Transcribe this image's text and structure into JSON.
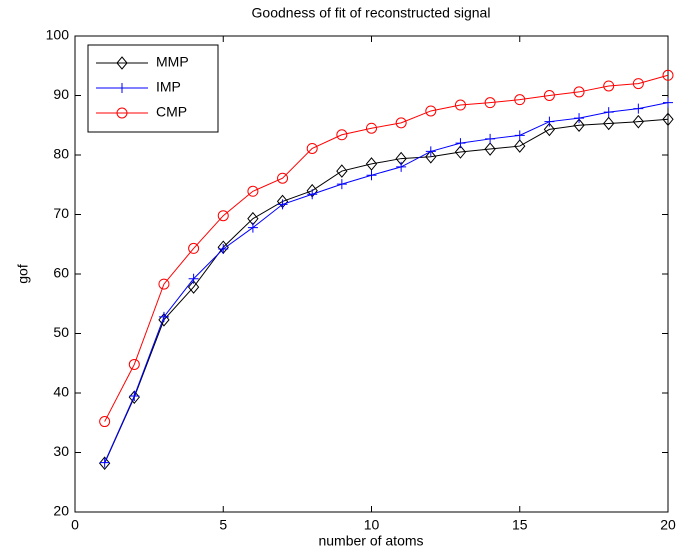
{
  "chart_data": {
    "type": "line",
    "title": "Goodness of fit of reconstructed signal",
    "xlabel": "number of atoms",
    "ylabel": "gof",
    "x": [
      1,
      2,
      3,
      4,
      5,
      6,
      7,
      8,
      9,
      10,
      11,
      12,
      13,
      14,
      15,
      16,
      17,
      18,
      19,
      20
    ],
    "series": [
      {
        "name": "MMP",
        "color": "#000000",
        "marker": "diamond",
        "values": [
          28.2,
          39.3,
          52.3,
          57.8,
          64.5,
          69.3,
          72.2,
          74.0,
          77.3,
          78.5,
          79.4,
          79.7,
          80.5,
          81.0,
          81.5,
          84.3,
          85.0,
          85.3,
          85.6,
          86.0
        ]
      },
      {
        "name": "IMP",
        "color": "#0000ff",
        "marker": "plus",
        "values": [
          28.3,
          39.5,
          52.8,
          59.2,
          64.2,
          67.8,
          71.7,
          73.4,
          75.1,
          76.6,
          78.0,
          80.6,
          82.0,
          82.7,
          83.3,
          85.6,
          86.2,
          87.2,
          87.8,
          88.8
        ]
      },
      {
        "name": "CMP",
        "color": "#ff0000",
        "marker": "circle",
        "values": [
          35.2,
          44.8,
          58.3,
          64.3,
          69.8,
          73.9,
          76.1,
          81.1,
          83.4,
          84.5,
          85.4,
          87.4,
          88.4,
          88.8,
          89.3,
          90.0,
          90.6,
          91.6,
          92.0,
          93.4
        ]
      }
    ],
    "xlim": [
      0,
      20
    ],
    "xticks": [
      0,
      5,
      10,
      15,
      20
    ],
    "ylim": [
      20,
      100
    ],
    "yticks": [
      20,
      30,
      40,
      50,
      60,
      70,
      80,
      90,
      100
    ],
    "grid": false,
    "legend": "upper left"
  }
}
